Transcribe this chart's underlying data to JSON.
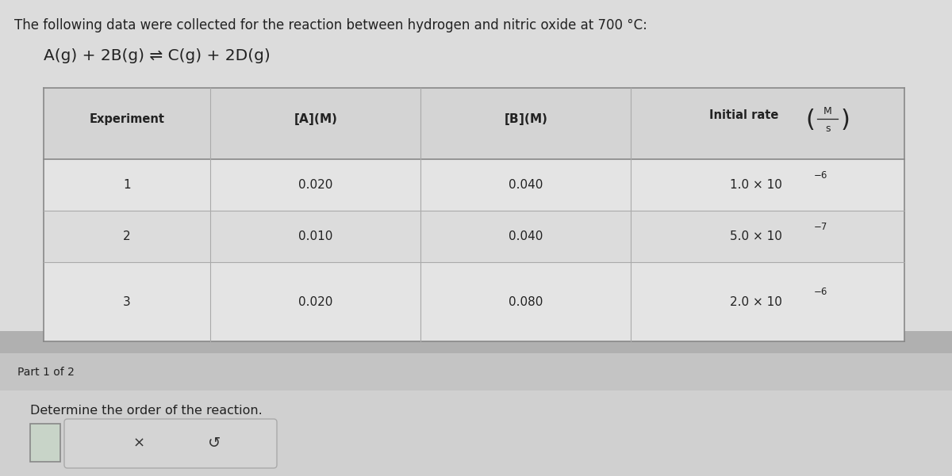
{
  "title_line": "The following data were collected for the reaction between hydrogen and nitric oxide at 700 °C:",
  "equation": "A(g) + 2B(g) ⇌ C(g) + 2D(g)",
  "col_headers": [
    "Experiment",
    "[A](M)",
    "[B](M)",
    "Initial rate"
  ],
  "rate_unit_top": "M",
  "rate_unit_bot": "s",
  "rows": [
    [
      "1",
      "0.020",
      "0.040",
      "1.0 × 10",
      "−6"
    ],
    [
      "2",
      "0.010",
      "0.040",
      "5.0 × 10",
      "−7"
    ],
    [
      "3",
      "0.020",
      "0.080",
      "2.0 × 10",
      "−6"
    ]
  ],
  "part_label": "Part 1 of 2",
  "question": "Determine the order of the reaction.",
  "bg_top": "#dcdcdc",
  "bg_bottom": "#cccccc",
  "table_bg_header": "#d8d8d8",
  "table_bg_row": "#e2e2e2",
  "table_border": "#aaaaaa",
  "dark_text": "#222222",
  "part_strip_bg": "#bebebe",
  "bottom_area_bg": "#d0d0d0",
  "answer_box_color": "#c8d8c8",
  "button_bg": "#d8d8d8"
}
